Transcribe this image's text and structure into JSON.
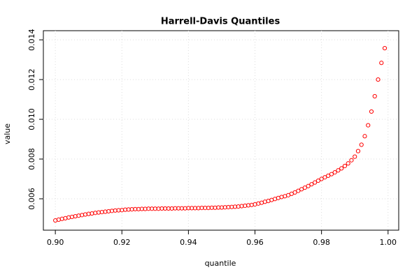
{
  "chart_data": {
    "type": "scatter",
    "title": "Harrell-Davis Quantiles",
    "x_label": "quantile",
    "y_label": "value",
    "color": "#ff0000",
    "grid": true,
    "xlim": [
      0.8964,
      1.0032
    ],
    "ylim": [
      0.00442,
      0.01446
    ],
    "xticks": [
      {
        "value": 0.9,
        "label": "0.90"
      },
      {
        "value": 0.92,
        "label": "0.92"
      },
      {
        "value": 0.94,
        "label": "0.94"
      },
      {
        "value": 0.96,
        "label": "0.96"
      },
      {
        "value": 0.98,
        "label": "0.98"
      },
      {
        "value": 1.0,
        "label": "1.00"
      }
    ],
    "yticks": [
      0.006,
      0.008,
      {
        "value": 0.01,
        "label": "0.010"
      },
      0.012,
      0.014
    ],
    "x": [
      0.9,
      0.901,
      0.902,
      0.903,
      0.904,
      0.905,
      0.906,
      0.907,
      0.908,
      0.909,
      0.91,
      0.911,
      0.912,
      0.913,
      0.914,
      0.915,
      0.916,
      0.917,
      0.918,
      0.919,
      0.92,
      0.921,
      0.922,
      0.923,
      0.924,
      0.925,
      0.926,
      0.927,
      0.928,
      0.929,
      0.93,
      0.931,
      0.932,
      0.933,
      0.934,
      0.935,
      0.936,
      0.937,
      0.938,
      0.939,
      0.94,
      0.941,
      0.942,
      0.943,
      0.944,
      0.945,
      0.946,
      0.947,
      0.948,
      0.949,
      0.95,
      0.951,
      0.952,
      0.953,
      0.954,
      0.955,
      0.956,
      0.957,
      0.958,
      0.959,
      0.96,
      0.961,
      0.962,
      0.963,
      0.964,
      0.965,
      0.966,
      0.967,
      0.968,
      0.969,
      0.97,
      0.971,
      0.972,
      0.973,
      0.974,
      0.975,
      0.976,
      0.977,
      0.978,
      0.979,
      0.98,
      0.981,
      0.982,
      0.983,
      0.984,
      0.985,
      0.986,
      0.987,
      0.988,
      0.989,
      0.99,
      0.991,
      0.992,
      0.993,
      0.994,
      0.995,
      0.996,
      0.997,
      0.998,
      0.999
    ],
    "values": [
      0.00491,
      0.00495,
      0.00499,
      0.00502,
      0.00506,
      0.00509,
      0.00512,
      0.00515,
      0.00518,
      0.00521,
      0.00524,
      0.00526,
      0.00529,
      0.00531,
      0.00533,
      0.00535,
      0.00537,
      0.00539,
      0.00541,
      0.00542,
      0.00543,
      0.00545,
      0.00546,
      0.00547,
      0.00548,
      0.00548,
      0.00549,
      0.00549,
      0.0055,
      0.0055,
      0.0055,
      0.0055,
      0.00551,
      0.00551,
      0.00551,
      0.00551,
      0.00552,
      0.00552,
      0.00552,
      0.00552,
      0.00553,
      0.00553,
      0.00553,
      0.00553,
      0.00554,
      0.00554,
      0.00554,
      0.00555,
      0.00555,
      0.00556,
      0.00556,
      0.00557,
      0.00558,
      0.00559,
      0.0056,
      0.00561,
      0.00563,
      0.00565,
      0.00567,
      0.00569,
      0.00572,
      0.00576,
      0.0058,
      0.00585,
      0.00589,
      0.00594,
      0.00599,
      0.00604,
      0.00609,
      0.00613,
      0.00618,
      0.00625,
      0.00632,
      0.0064,
      0.00648,
      0.00656,
      0.00664,
      0.00673,
      0.00682,
      0.00691,
      0.007,
      0.00708,
      0.00716,
      0.00724,
      0.00733,
      0.00743,
      0.00753,
      0.00765,
      0.00778,
      0.00794,
      0.00812,
      0.0084,
      0.00872,
      0.00915,
      0.0097,
      0.01039,
      0.01116,
      0.012,
      0.01284,
      0.01358
    ]
  }
}
